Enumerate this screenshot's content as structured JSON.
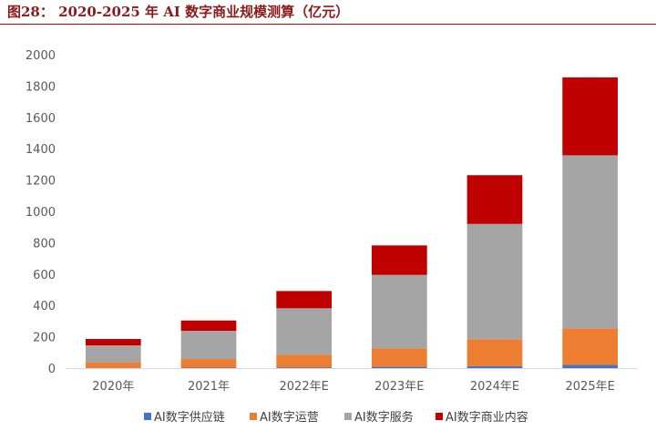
{
  "title": "图28：  2020-2025 年 AI 数字商业规模测算（亿元）",
  "chart_data": {
    "type": "bar",
    "stacked": true,
    "title": "2020-2025 年 AI 数字商业规模测算（亿元）",
    "xlabel": "",
    "ylabel": "",
    "ylim": [
      0,
      2000
    ],
    "yticks": [
      0,
      200,
      400,
      600,
      800,
      1000,
      1200,
      1400,
      1600,
      1800,
      2000
    ],
    "categories": [
      "2020年",
      "2021年",
      "2022年E",
      "2023年E",
      "2024年E",
      "2025年E"
    ],
    "series": [
      {
        "name": "AI数字供应链",
        "color": "#4472c4",
        "values": [
          2,
          3,
          5,
          8,
          12,
          20
        ]
      },
      {
        "name": "AI数字运营",
        "color": "#ed7d31",
        "values": [
          35,
          55,
          80,
          118,
          172,
          234
        ]
      },
      {
        "name": "AI数字服务",
        "color": "#a5a5a5",
        "values": [
          108,
          180,
          297,
          469,
          736,
          1104
        ]
      },
      {
        "name": "AI数字商业内容",
        "color": "#c00000",
        "values": [
          41,
          66,
          110,
          188,
          311,
          497
        ]
      }
    ],
    "legend": "bottom",
    "grid": false
  }
}
